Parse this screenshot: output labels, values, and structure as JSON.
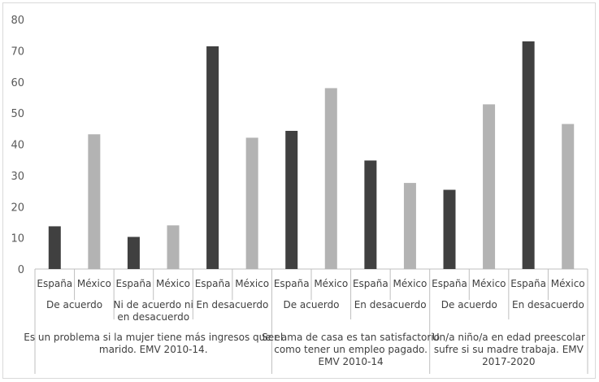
{
  "chart_data": {
    "type": "bar",
    "ylim": [
      0,
      80
    ],
    "yticks": [
      0,
      10,
      20,
      30,
      40,
      50,
      60,
      70,
      80
    ],
    "grid": false,
    "legend": "none",
    "colors": {
      "España": "#404040",
      "México": "#b3b3b3"
    },
    "groups": [
      {
        "label_lines": [
          "Es un problema si la mujer tiene más ingresos que el",
          "marido. EMV 2010-14."
        ],
        "subgroups": [
          {
            "label_lines": [
              "De acuerdo"
            ],
            "bars": [
              {
                "country": "España",
                "value": 13.7
              },
              {
                "country": "México",
                "value": 43.2
              }
            ]
          },
          {
            "label_lines": [
              "Ni de acuerdo ni",
              "en desacuerdo"
            ],
            "bars": [
              {
                "country": "España",
                "value": 10.3
              },
              {
                "country": "México",
                "value": 14.0
              }
            ]
          },
          {
            "label_lines": [
              "En desacuerdo"
            ],
            "bars": [
              {
                "country": "España",
                "value": 71.4
              },
              {
                "country": "México",
                "value": 42.1
              }
            ]
          }
        ]
      },
      {
        "label_lines": [
          "Ser ama de casa es tan satisfactorio",
          "como tener un empleo pagado.",
          "EMV 2010-14"
        ],
        "subgroups": [
          {
            "label_lines": [
              "De acuerdo"
            ],
            "bars": [
              {
                "country": "España",
                "value": 44.3
              },
              {
                "country": "México",
                "value": 58.0
              }
            ]
          },
          {
            "label_lines": [
              "En desacuerdo"
            ],
            "bars": [
              {
                "country": "España",
                "value": 34.8
              },
              {
                "country": "México",
                "value": 27.6
              }
            ]
          }
        ]
      },
      {
        "label_lines": [
          "Un/a niño/a en edad preescolar",
          "sufre si su madre trabaja. EMV",
          "2017-2020"
        ],
        "subgroups": [
          {
            "label_lines": [
              "De acuerdo"
            ],
            "bars": [
              {
                "country": "España",
                "value": 25.4
              },
              {
                "country": "México",
                "value": 52.8
              }
            ]
          },
          {
            "label_lines": [
              "En desacuerdo"
            ],
            "bars": [
              {
                "country": "España",
                "value": 73.0
              },
              {
                "country": "México",
                "value": 46.5
              }
            ]
          }
        ]
      }
    ]
  }
}
